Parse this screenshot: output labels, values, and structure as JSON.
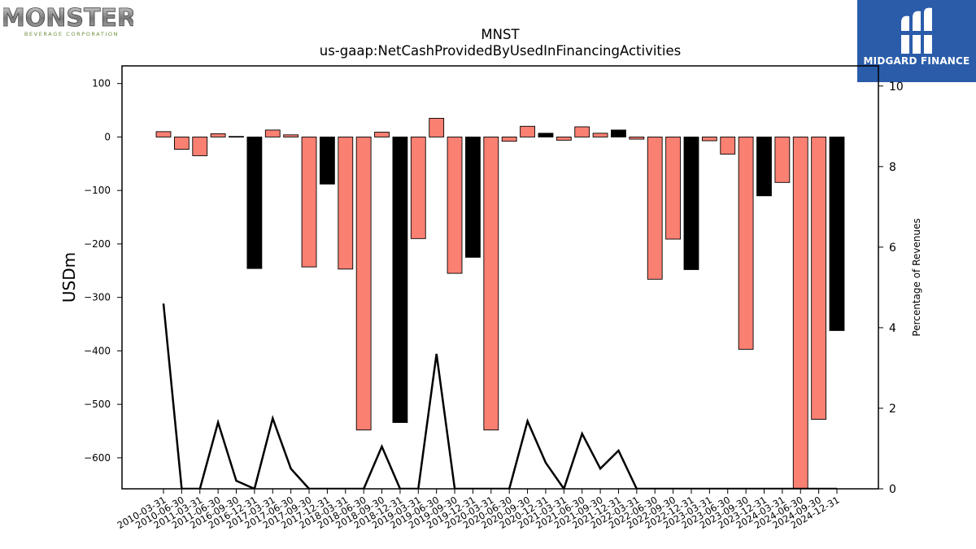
{
  "logos": {
    "left": {
      "name": "MONSTER",
      "tagline": "BEVERAGE CORPORATION"
    },
    "right": {
      "name": "MIDGARD FINANCE"
    }
  },
  "colors": {
    "positive_bar": "#fa8072",
    "highlight_bar": "#000000",
    "line": "#000000"
  },
  "chart_data": {
    "type": "bar",
    "title": "MNST",
    "subtitle": "us-gaap:NetCashProvidedByUsedInFinancingActivities",
    "ylabel": "USDm",
    "y2label": "Percentage of Revenues",
    "ylim": [
      -658,
      133
    ],
    "y2lim": [
      0,
      10.5
    ],
    "yticks": [
      100,
      0,
      -100,
      -200,
      -300,
      -400,
      -500,
      -600
    ],
    "y2ticks": [
      0,
      2,
      4,
      6,
      8,
      10
    ],
    "categories": [
      "2010-03-31",
      "2010-06-30",
      "2011-03-31",
      "2011-06-30",
      "2016-09-30",
      "2016-12-31",
      "2017-03-31",
      "2017-06-30",
      "2017-09-30",
      "2017-12-31",
      "2018-03-31",
      "2018-06-30",
      "2018-09-30",
      "2018-12-31",
      "2019-03-31",
      "2019-06-30",
      "2019-09-30",
      "2019-12-31",
      "2020-03-31",
      "2020-06-30",
      "2020-09-30",
      "2020-12-31",
      "2021-03-31",
      "2021-06-30",
      "2021-09-30",
      "2021-12-31",
      "2022-03-31",
      "2022-06-30",
      "2022-09-30",
      "2022-12-31",
      "2023-03-31",
      "2023-06-30",
      "2023-09-30",
      "2023-12-31",
      "2024-03-31",
      "2024-06-30",
      "2024-09-30",
      "2024-12-31"
    ],
    "values": [
      10,
      -23,
      -35,
      6,
      1,
      -246,
      13,
      4,
      -243,
      -88,
      -247,
      -548,
      9,
      -534,
      -190,
      35,
      -255,
      -225,
      -548,
      -8,
      20,
      7,
      -6,
      19,
      7,
      13,
      -4,
      -266,
      -191,
      -248,
      -7,
      -32,
      -397,
      -110,
      -85,
      -670,
      -528,
      -362
    ],
    "highlight": [
      false,
      false,
      false,
      false,
      true,
      true,
      false,
      false,
      false,
      true,
      false,
      false,
      false,
      true,
      false,
      false,
      false,
      true,
      false,
      false,
      false,
      true,
      false,
      false,
      false,
      true,
      false,
      false,
      false,
      true,
      false,
      false,
      false,
      true,
      false,
      false,
      false,
      true
    ],
    "pct_series": {
      "name": "Percentage of Revenues",
      "values": [
        4.6,
        0,
        0,
        1.65,
        0.2,
        0,
        1.75,
        0.5,
        0,
        0,
        0,
        0,
        1.05,
        0,
        0,
        3.35,
        0,
        0,
        0,
        0,
        1.68,
        0.65,
        0,
        1.37,
        0.5,
        0.95,
        0,
        0,
        0,
        0,
        0,
        0,
        0,
        0,
        0,
        0,
        0,
        0
      ]
    }
  }
}
